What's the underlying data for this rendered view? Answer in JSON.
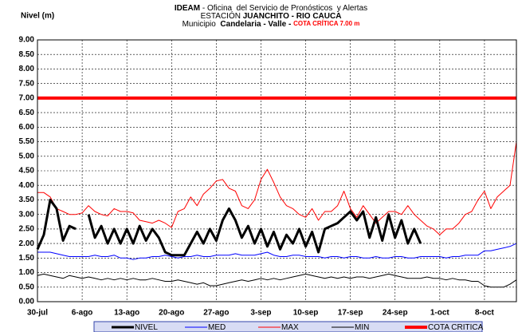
{
  "chart_data": {
    "type": "line",
    "title_lines": [
      [
        {
          "text": "IDEAM",
          "bold": true
        },
        {
          "text": " - Oficina  del Servicio de Pronósticos  y Alertas"
        }
      ],
      [
        {
          "text": "ESTACIÓN "
        },
        {
          "text": "JUANCHITO - RIO CAUCA",
          "bold": true
        }
      ],
      [
        {
          "text": "Municipio  "
        },
        {
          "text": "Candelaria - Valle - ",
          "bold": true
        },
        {
          "text": "COTA CRÍTICA 7.00 m",
          "bold": true,
          "color": "#ff0000",
          "small": true
        }
      ]
    ],
    "y_label": "Nivel (m)",
    "categories": [
      "30-jul",
      null,
      null,
      null,
      null,
      null,
      null,
      "6-ago",
      null,
      null,
      null,
      null,
      null,
      null,
      "13-ago",
      null,
      null,
      null,
      null,
      null,
      null,
      "20-ago",
      null,
      null,
      null,
      null,
      null,
      null,
      "27-ago",
      null,
      null,
      null,
      null,
      null,
      null,
      "3-sep",
      null,
      null,
      null,
      null,
      null,
      null,
      "10-sep",
      null,
      null,
      null,
      null,
      null,
      null,
      "17-sep",
      null,
      null,
      null,
      null,
      null,
      null,
      "24-sep",
      null,
      null,
      null,
      null,
      null,
      null,
      "1-oct",
      null,
      null,
      null,
      null,
      null,
      null,
      "8-oct",
      null,
      null,
      null,
      null,
      null
    ],
    "ylim": [
      0,
      9
    ],
    "yticks": [
      {
        "value": 0,
        "label": "0.00"
      },
      {
        "value": 0.5,
        "label": "0.50"
      },
      {
        "value": 1,
        "label": "1.00"
      },
      {
        "value": 1.5,
        "label": "1.50"
      },
      {
        "value": 2,
        "label": "2.00"
      },
      {
        "value": 2.5,
        "label": "2.50"
      },
      {
        "value": 3,
        "label": "3.00"
      },
      {
        "value": 3.5,
        "label": "3.50"
      },
      {
        "value": 4,
        "label": "4.00"
      },
      {
        "value": 4.5,
        "label": "4.50"
      },
      {
        "value": 5,
        "label": "5.00"
      },
      {
        "value": 5.5,
        "label": "5.50"
      },
      {
        "value": 6,
        "label": "6.00"
      },
      {
        "value": 6.5,
        "label": "6.50"
      },
      {
        "value": 7,
        "label": "7.00"
      },
      {
        "value": 7.5,
        "label": "7.50"
      },
      {
        "value": 8,
        "label": "8.00"
      },
      {
        "value": 8.5,
        "label": "8.50"
      },
      {
        "value": 9,
        "label": "9.00"
      }
    ],
    "grid": true,
    "series": [
      {
        "name": "NIVEL",
        "color": "#000000",
        "line_width": 3,
        "values": [
          1.8,
          2.3,
          3.5,
          3.2,
          2.1,
          2.6,
          2.5,
          null,
          3.0,
          2.2,
          2.6,
          2.0,
          2.5,
          2.0,
          2.5,
          2.0,
          2.6,
          2.1,
          2.5,
          2.2,
          1.7,
          1.6,
          1.6,
          1.6,
          2.0,
          2.4,
          2.0,
          2.5,
          2.1,
          2.8,
          3.2,
          2.8,
          2.2,
          2.6,
          2.0,
          2.5,
          1.9,
          2.4,
          1.8,
          2.3,
          2.0,
          2.5,
          1.9,
          2.4,
          1.7,
          2.5,
          2.6,
          2.7,
          2.9,
          3.1,
          2.8,
          3.1,
          2.2,
          2.9,
          2.1,
          3.0,
          2.2,
          2.8,
          2.0,
          2.5,
          2.0,
          null,
          null,
          null,
          null,
          null,
          null,
          null,
          null,
          null,
          null,
          null,
          null,
          null,
          null,
          null
        ]
      },
      {
        "name": "MED",
        "color": "#0000ff",
        "line_width": 1,
        "values": [
          1.7,
          1.7,
          1.7,
          1.65,
          1.6,
          1.55,
          1.55,
          1.55,
          1.55,
          1.6,
          1.55,
          1.55,
          1.6,
          1.5,
          1.5,
          1.45,
          1.5,
          1.5,
          1.55,
          1.55,
          1.6,
          1.55,
          1.5,
          1.55,
          1.55,
          1.6,
          1.55,
          1.55,
          1.6,
          1.6,
          1.6,
          1.65,
          1.6,
          1.6,
          1.6,
          1.65,
          1.7,
          1.6,
          1.55,
          1.55,
          1.6,
          1.6,
          1.55,
          1.55,
          1.55,
          1.5,
          1.55,
          1.55,
          1.5,
          1.55,
          1.55,
          1.5,
          1.5,
          1.55,
          1.5,
          1.5,
          1.55,
          1.55,
          1.5,
          1.5,
          1.55,
          1.55,
          1.55,
          1.55,
          1.5,
          1.55,
          1.55,
          1.6,
          1.6,
          1.6,
          1.75,
          1.75,
          1.8,
          1.85,
          1.9,
          2.0
        ]
      },
      {
        "name": "MAX",
        "color": "#ff0000",
        "line_width": 1,
        "values": [
          3.75,
          3.75,
          3.6,
          3.2,
          3.1,
          3.0,
          3.0,
          3.05,
          3.3,
          3.1,
          3.0,
          2.95,
          3.2,
          3.1,
          3.1,
          3.05,
          2.8,
          2.75,
          2.7,
          2.8,
          2.7,
          2.55,
          3.1,
          3.2,
          3.6,
          3.3,
          3.7,
          3.9,
          4.15,
          4.2,
          3.9,
          3.8,
          3.3,
          3.2,
          3.5,
          4.2,
          4.55,
          4.1,
          3.6,
          3.3,
          3.2,
          3.0,
          2.9,
          3.2,
          2.8,
          3.1,
          3.1,
          3.3,
          3.8,
          3.2,
          2.9,
          3.3,
          3.0,
          2.7,
          2.9,
          3.1,
          3.1,
          3.0,
          3.3,
          3.0,
          2.8,
          2.6,
          2.5,
          2.3,
          2.5,
          2.5,
          2.7,
          3.0,
          3.1,
          3.5,
          3.8,
          3.2,
          3.6,
          3.8,
          4.0,
          5.5
        ]
      },
      {
        "name": "MIN",
        "color": "#000000",
        "line_width": 1,
        "values": [
          0.9,
          0.95,
          0.9,
          0.85,
          0.8,
          0.9,
          0.85,
          0.8,
          0.85,
          0.8,
          0.75,
          0.8,
          0.75,
          0.8,
          0.75,
          0.8,
          0.75,
          0.75,
          0.8,
          0.75,
          0.7,
          0.7,
          0.75,
          0.7,
          0.65,
          0.6,
          0.65,
          0.55,
          0.55,
          0.6,
          0.65,
          0.7,
          0.75,
          0.7,
          0.75,
          0.8,
          0.75,
          0.8,
          0.75,
          0.8,
          0.85,
          0.9,
          0.95,
          0.9,
          0.85,
          0.8,
          0.85,
          0.8,
          0.85,
          0.8,
          0.85,
          0.85,
          0.8,
          0.85,
          0.9,
          0.95,
          0.9,
          0.85,
          0.8,
          0.8,
          0.8,
          0.85,
          0.8,
          0.8,
          0.75,
          0.8,
          0.75,
          0.75,
          0.7,
          0.7,
          0.55,
          0.5,
          0.5,
          0.5,
          0.6,
          0.75
        ]
      }
    ],
    "reference_line": {
      "name": "COTA CRITICA",
      "color": "#ff0000",
      "line_width": 4,
      "value": 7
    }
  }
}
